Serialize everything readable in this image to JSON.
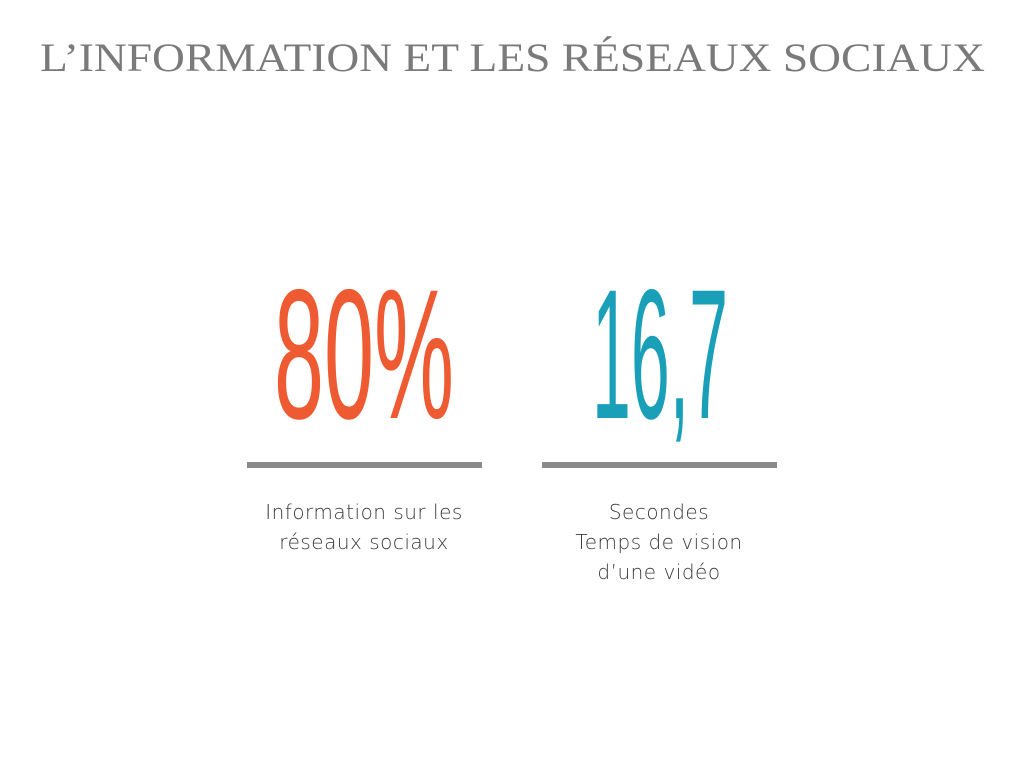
{
  "title": "L’INFORMATION ET LES RÉSEAUX SOCIAUX",
  "colors": {
    "orange": "#EE5A32",
    "teal": "#1A9FB9",
    "divider": "#8A8A8A",
    "title": "#7A7A7A"
  },
  "stats": [
    {
      "value": "80%",
      "label_lines": [
        "Information sur les",
        "réseaux sociaux"
      ]
    },
    {
      "value": "16,7",
      "label_lines": [
        "Secondes",
        "Temps de vision",
        "d’une vidéo"
      ]
    }
  ]
}
